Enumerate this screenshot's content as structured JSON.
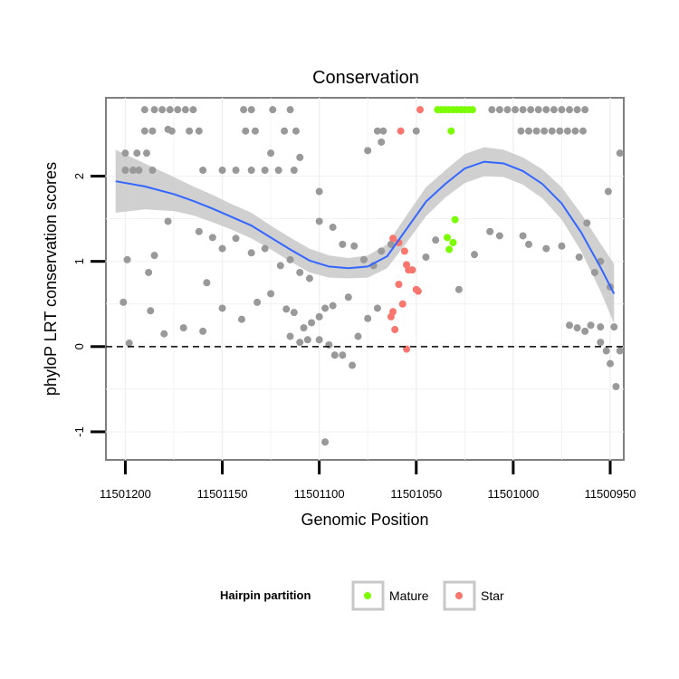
{
  "chart_data": {
    "type": "scatter",
    "title": "Conservation",
    "xlabel": "Genomic Position",
    "ylabel": "phyloP LRT conservation scores",
    "x_reversed": true,
    "xlim": [
      11501210,
      11500943
    ],
    "ylim": [
      -1.33,
      2.92
    ],
    "x_ticks": [
      11501200,
      11501150,
      11501100,
      11501050,
      11501000,
      11500950
    ],
    "x_tick_labels": [
      "11501200",
      "11501150",
      "11501100",
      "11501050",
      "11501000",
      "11500950"
    ],
    "y_ticks": [
      -1,
      0,
      1,
      2
    ],
    "y_tick_labels": [
      "-1",
      "0",
      "1",
      "2"
    ],
    "reference_line": {
      "y": 0,
      "style": "dashed"
    },
    "grid": true,
    "legend": {
      "title": "Hairpin partition",
      "position": "bottom",
      "entries": [
        {
          "label": "Mature",
          "color": "#7CFC00"
        },
        {
          "label": "Star",
          "color": "#F8766D"
        }
      ]
    },
    "colors": {
      "other": "#999999",
      "mature": "#7CFC00",
      "star": "#F8766D",
      "smooth": "#3366FF",
      "ribbon": "#C8C8C8"
    },
    "series": [
      {
        "name": "Mature",
        "color": "#7CFC00",
        "points": [
          [
            11501039,
            2.78
          ],
          [
            11501037,
            2.78
          ],
          [
            11501035,
            2.78
          ],
          [
            11501033,
            2.78
          ],
          [
            11501031,
            2.78
          ],
          [
            11501029,
            2.78
          ],
          [
            11501027,
            2.78
          ],
          [
            11501025,
            2.78
          ],
          [
            11501023,
            2.78
          ],
          [
            11501021,
            2.78
          ],
          [
            11501032,
            2.53
          ],
          [
            11501034,
            1.28
          ],
          [
            11501033,
            1.14
          ],
          [
            11501031,
            1.22
          ],
          [
            11501030,
            1.49
          ]
        ]
      },
      {
        "name": "Star",
        "color": "#F8766D",
        "points": [
          [
            11501048,
            2.78
          ],
          [
            11501058,
            2.53
          ],
          [
            11501062,
            1.27
          ],
          [
            11501059,
            1.22
          ],
          [
            11501056,
            1.12
          ],
          [
            11501055,
            0.96
          ],
          [
            11501054,
            0.9
          ],
          [
            11501052,
            0.9
          ],
          [
            11501050,
            0.67
          ],
          [
            11501049,
            0.65
          ],
          [
            11501059,
            0.73
          ],
          [
            11501057,
            0.5
          ],
          [
            11501062,
            0.41
          ],
          [
            11501063,
            0.35
          ],
          [
            11501061,
            0.2
          ],
          [
            11501055,
            -0.03
          ]
        ]
      },
      {
        "name": "",
        "color": "#999999",
        "points": [
          [
            11501190,
            2.78
          ],
          [
            11501185,
            2.78
          ],
          [
            11501181,
            2.78
          ],
          [
            11501177,
            2.78
          ],
          [
            11501173,
            2.78
          ],
          [
            11501169,
            2.78
          ],
          [
            11501165,
            2.78
          ],
          [
            11501139,
            2.78
          ],
          [
            11501135,
            2.78
          ],
          [
            11501124,
            2.78
          ],
          [
            11501115,
            2.78
          ],
          [
            11501011,
            2.78
          ],
          [
            11501007,
            2.78
          ],
          [
            11501003,
            2.78
          ],
          [
            11500999,
            2.78
          ],
          [
            11500995,
            2.78
          ],
          [
            11500991,
            2.78
          ],
          [
            11500987,
            2.78
          ],
          [
            11500983,
            2.78
          ],
          [
            11500979,
            2.78
          ],
          [
            11500975,
            2.78
          ],
          [
            11500971,
            2.78
          ],
          [
            11500967,
            2.78
          ],
          [
            11500963,
            2.78
          ],
          [
            11501190,
            2.53
          ],
          [
            11501186,
            2.53
          ],
          [
            11501176,
            2.53
          ],
          [
            11501167,
            2.53
          ],
          [
            11501162,
            2.53
          ],
          [
            11501138,
            2.53
          ],
          [
            11501133,
            2.53
          ],
          [
            11501118,
            2.53
          ],
          [
            11501112,
            2.53
          ],
          [
            11501070,
            2.53
          ],
          [
            11501067,
            2.53
          ],
          [
            11501050,
            2.53
          ],
          [
            11500996,
            2.53
          ],
          [
            11500992,
            2.53
          ],
          [
            11500988,
            2.53
          ],
          [
            11500984,
            2.53
          ],
          [
            11500980,
            2.53
          ],
          [
            11500976,
            2.53
          ],
          [
            11500972,
            2.53
          ],
          [
            11500968,
            2.53
          ],
          [
            11500964,
            2.53
          ],
          [
            11501200,
            2.27
          ],
          [
            11501194,
            2.27
          ],
          [
            11501189,
            2.27
          ],
          [
            11501125,
            2.27
          ],
          [
            11501110,
            2.22
          ],
          [
            11501075,
            2.3
          ],
          [
            11501068,
            2.4
          ],
          [
            11501178,
            2.55
          ],
          [
            11501200,
            2.07
          ],
          [
            11501196,
            2.07
          ],
          [
            11501193,
            2.07
          ],
          [
            11501186,
            2.07
          ],
          [
            11501160,
            2.07
          ],
          [
            11501150,
            2.07
          ],
          [
            11501143,
            2.07
          ],
          [
            11501135,
            2.07
          ],
          [
            11501128,
            2.07
          ],
          [
            11501121,
            2.07
          ],
          [
            11501113,
            2.07
          ],
          [
            11501100,
            1.82
          ],
          [
            11500951,
            1.82
          ],
          [
            11500945,
            2.27
          ],
          [
            11501199,
            1.02
          ],
          [
            11501188,
            0.87
          ],
          [
            11501185,
            1.07
          ],
          [
            11501178,
            1.47
          ],
          [
            11501162,
            1.35
          ],
          [
            11501155,
            1.28
          ],
          [
            11501150,
            1.15
          ],
          [
            11501143,
            1.27
          ],
          [
            11501135,
            1.1
          ],
          [
            11501128,
            1.15
          ],
          [
            11501120,
            0.95
          ],
          [
            11501115,
            1.02
          ],
          [
            11501110,
            0.87
          ],
          [
            11501105,
            0.8
          ],
          [
            11501100,
            1.47
          ],
          [
            11501093,
            1.4
          ],
          [
            11501088,
            1.2
          ],
          [
            11501082,
            1.18
          ],
          [
            11501077,
            1.02
          ],
          [
            11501072,
            0.95
          ],
          [
            11501068,
            1.12
          ],
          [
            11501063,
            1.2
          ],
          [
            11501045,
            1.05
          ],
          [
            11501040,
            1.25
          ],
          [
            11501020,
            1.08
          ],
          [
            11501012,
            1.35
          ],
          [
            11501007,
            1.3
          ],
          [
            11500995,
            1.3
          ],
          [
            11500992,
            1.2
          ],
          [
            11500983,
            1.15
          ],
          [
            11500975,
            1.18
          ],
          [
            11500966,
            1.05
          ],
          [
            11500962,
            1.45
          ],
          [
            11500958,
            0.87
          ],
          [
            11500955,
            1.0
          ],
          [
            11501201,
            0.52
          ],
          [
            11501187,
            0.42
          ],
          [
            11501180,
            0.15
          ],
          [
            11501170,
            0.22
          ],
          [
            11501160,
            0.18
          ],
          [
            11501158,
            0.75
          ],
          [
            11501150,
            0.45
          ],
          [
            11501140,
            0.32
          ],
          [
            11501132,
            0.52
          ],
          [
            11501125,
            0.62
          ],
          [
            11501117,
            0.44
          ],
          [
            11501113,
            0.4
          ],
          [
            11501108,
            0.22
          ],
          [
            11501104,
            0.28
          ],
          [
            11501100,
            0.35
          ],
          [
            11501097,
            0.45
          ],
          [
            11501093,
            0.48
          ],
          [
            11501085,
            0.58
          ],
          [
            11501080,
            0.12
          ],
          [
            11501075,
            0.33
          ],
          [
            11501070,
            0.45
          ],
          [
            11501028,
            0.67
          ],
          [
            11500971,
            0.25
          ],
          [
            11500967,
            0.22
          ],
          [
            11500963,
            0.18
          ],
          [
            11500960,
            0.25
          ],
          [
            11500955,
            0.23
          ],
          [
            11500948,
            0.23
          ],
          [
            11500950,
            0.7
          ],
          [
            11501198,
            0.04
          ],
          [
            11501115,
            0.12
          ],
          [
            11501110,
            0.05
          ],
          [
            11501106,
            0.08
          ],
          [
            11501100,
            0.08
          ],
          [
            11501095,
            0.02
          ],
          [
            11501092,
            -0.1
          ],
          [
            11501088,
            -0.1
          ],
          [
            11501083,
            -0.22
          ],
          [
            11500955,
            0.05
          ],
          [
            11500952,
            -0.05
          ],
          [
            11500950,
            -0.2
          ],
          [
            11500947,
            -0.47
          ],
          [
            11500945,
            -0.05
          ],
          [
            11501097,
            -1.12
          ]
        ]
      }
    ],
    "smooth": {
      "x": [
        11501205,
        11501190,
        11501175,
        11501165,
        11501155,
        11501145,
        11501135,
        11501125,
        11501115,
        11501105,
        11501095,
        11501085,
        11501075,
        11501065,
        11501055,
        11501045,
        11501035,
        11501025,
        11501015,
        11501005,
        11500995,
        11500985,
        11500975,
        11500965,
        11500955,
        11500948
      ],
      "y": [
        1.94,
        1.88,
        1.79,
        1.71,
        1.62,
        1.52,
        1.42,
        1.28,
        1.14,
        1.01,
        0.94,
        0.92,
        0.94,
        1.06,
        1.38,
        1.7,
        1.91,
        2.09,
        2.17,
        2.15,
        2.06,
        1.91,
        1.68,
        1.34,
        0.93,
        0.62
      ],
      "ci_half_width": [
        0.37,
        0.27,
        0.2,
        0.17,
        0.16,
        0.15,
        0.15,
        0.14,
        0.14,
        0.14,
        0.13,
        0.12,
        0.13,
        0.14,
        0.16,
        0.17,
        0.16,
        0.17,
        0.17,
        0.16,
        0.16,
        0.17,
        0.19,
        0.22,
        0.28,
        0.35
      ]
    }
  }
}
